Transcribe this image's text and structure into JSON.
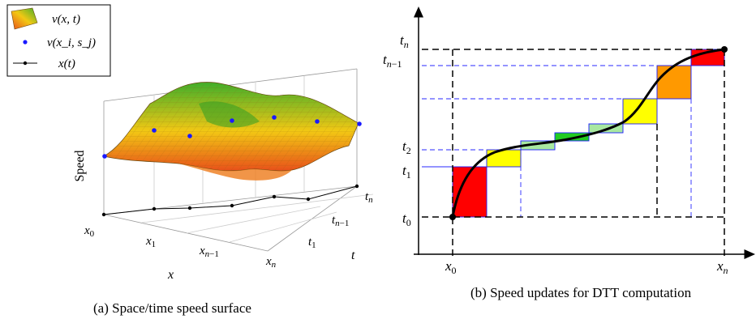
{
  "colors": {
    "surface_low": "#e8501a",
    "surface_mid": "#f2c814",
    "surface_high": "#3fae2a",
    "points": "#1a1aff",
    "red": "#ff0000",
    "yellow": "#ffff00",
    "lightgreen": "#a8e8a0",
    "green": "#22cc22",
    "orange": "#ff9900",
    "guide_blue": "#2a2aff"
  },
  "left": {
    "legend": {
      "surface": "v(x, t)",
      "points": "v(x_i, s_j)",
      "line": "x(t)"
    },
    "axis_z_label": "Speed",
    "axis_x_label": "x",
    "axis_t_label": "t",
    "x_ticks": [
      "x0",
      "x1",
      "xn−1",
      "xn"
    ],
    "t_ticks": [
      "t1",
      "tn−1",
      "tn"
    ],
    "caption": "(a) Space/time speed surface"
  },
  "right": {
    "y_ticks": [
      "t0",
      "t1",
      "t2",
      "tn−1",
      "tn"
    ],
    "x_ticks": [
      "x0",
      "xn"
    ],
    "caption": "(b) Speed updates for DTT computation"
  }
}
